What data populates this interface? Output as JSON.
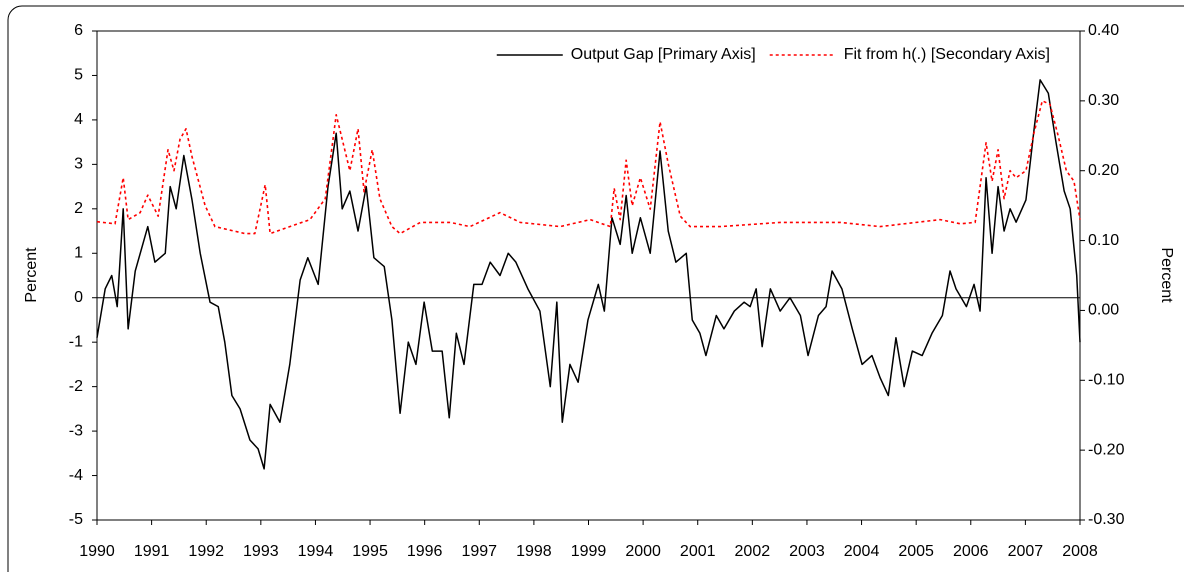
{
  "chart_data": {
    "type": "line",
    "y_label": "Percent",
    "y2_label": "Percent",
    "legend": "upper right",
    "xlim": [
      1990,
      2008
    ],
    "xticks": [
      1990,
      1991,
      1992,
      1993,
      1994,
      1995,
      1996,
      1997,
      1998,
      1999,
      2000,
      2001,
      2002,
      2003,
      2004,
      2005,
      2006,
      2007,
      2008
    ],
    "ylim": [
      -5,
      6
    ],
    "yticks": [
      -5,
      -4,
      -3,
      -2,
      -1,
      0,
      1,
      2,
      3,
      4,
      5,
      6
    ],
    "y2lim": [
      -0.3,
      0.4
    ],
    "y2ticks": [
      {
        "value": -0.3,
        "label": "-0.30"
      },
      {
        "value": -0.2,
        "label": "-0.20"
      },
      {
        "value": -0.1,
        "label": "-0.10"
      },
      {
        "value": 0,
        "label": "0.00"
      },
      {
        "value": 0.1,
        "label": "0.10"
      },
      {
        "value": 0.2,
        "label": "0.20"
      },
      {
        "value": 0.3,
        "label": "0.30"
      },
      {
        "value": 0.4,
        "label": "0.40"
      }
    ],
    "series": [
      {
        "name": "Output Gap [Primary Axis]",
        "color": "#000000",
        "style": "solid",
        "x": [
          1990.0,
          1990.15,
          1990.27,
          1990.37,
          1990.48,
          1990.57,
          1990.7,
          1990.93,
          1991.06,
          1991.25,
          1991.34,
          1991.45,
          1991.59,
          1991.74,
          1991.89,
          1992.07,
          1992.22,
          1992.34,
          1992.47,
          1992.62,
          1992.8,
          1992.95,
          1993.06,
          1993.17,
          1993.35,
          1993.53,
          1993.72,
          1993.86,
          1994.05,
          1994.23,
          1994.38,
          1994.49,
          1994.63,
          1994.78,
          1994.93,
          1995.07,
          1995.26,
          1995.4,
          1995.55,
          1995.7,
          1995.84,
          1995.99,
          1996.14,
          1996.32,
          1996.45,
          1996.58,
          1996.72,
          1996.9,
          1997.05,
          1997.2,
          1997.38,
          1997.53,
          1997.67,
          1997.89,
          1998.11,
          1998.3,
          1998.42,
          1998.52,
          1998.66,
          1998.81,
          1998.99,
          1999.18,
          1999.29,
          1999.43,
          1999.58,
          1999.69,
          1999.8,
          1999.95,
          2000.13,
          2000.31,
          2000.46,
          2000.6,
          2000.79,
          2000.9,
          2001.04,
          2001.15,
          2001.34,
          2001.48,
          2001.67,
          2001.85,
          2001.96,
          2002.07,
          2002.18,
          2002.33,
          2002.51,
          2002.69,
          2002.88,
          2003.02,
          2003.21,
          2003.35,
          2003.46,
          2003.64,
          2003.83,
          2004.01,
          2004.19,
          2004.34,
          2004.49,
          2004.63,
          2004.78,
          2004.93,
          2005.11,
          2005.29,
          2005.48,
          2005.62,
          2005.73,
          2005.92,
          2006.06,
          2006.17,
          2006.28,
          2006.39,
          2006.5,
          2006.61,
          2006.72,
          2006.83,
          2007.01,
          2007.16,
          2007.27,
          2007.42,
          2007.56,
          2007.71,
          2007.82,
          2007.94,
          2008.0
        ],
        "values": [
          -0.9,
          0.2,
          0.5,
          -0.2,
          2.0,
          -0.7,
          0.6,
          1.6,
          0.8,
          1.0,
          2.5,
          2.0,
          3.2,
          2.2,
          1.0,
          -0.1,
          -0.2,
          -1.0,
          -2.2,
          -2.5,
          -3.2,
          -3.4,
          -3.85,
          -2.4,
          -2.8,
          -1.5,
          0.4,
          0.9,
          0.3,
          2.5,
          3.7,
          2.0,
          2.4,
          1.5,
          2.5,
          0.9,
          0.7,
          -0.5,
          -2.6,
          -1.0,
          -1.5,
          -0.1,
          -1.2,
          -1.2,
          -2.7,
          -0.8,
          -1.5,
          0.3,
          0.3,
          0.8,
          0.5,
          1.0,
          0.8,
          0.2,
          -0.3,
          -2.0,
          -0.1,
          -2.8,
          -1.5,
          -1.9,
          -0.5,
          0.3,
          -0.3,
          1.8,
          1.2,
          2.3,
          1.0,
          1.8,
          1.0,
          3.3,
          1.5,
          0.8,
          1.0,
          -0.5,
          -0.8,
          -1.3,
          -0.4,
          -0.7,
          -0.3,
          -0.1,
          -0.2,
          0.2,
          -1.1,
          0.2,
          -0.3,
          0.0,
          -0.4,
          -1.3,
          -0.4,
          -0.2,
          0.6,
          0.2,
          -0.7,
          -1.5,
          -1.3,
          -1.8,
          -2.2,
          -0.9,
          -2.0,
          -1.2,
          -1.3,
          -0.8,
          -0.4,
          0.6,
          0.2,
          -0.2,
          0.3,
          -0.3,
          2.7,
          1.0,
          2.5,
          1.5,
          2.0,
          1.7,
          2.2,
          3.8,
          4.9,
          4.6,
          3.5,
          2.4,
          2.0,
          0.5,
          -1.0
        ]
      },
      {
        "name": "Fit from h(.) [Secondary Axis]",
        "color": "#ff0000",
        "style": "dotted",
        "axis": "y2",
        "x": [
          1990.0,
          1990.33,
          1990.48,
          1990.57,
          1990.79,
          1990.93,
          1991.12,
          1991.3,
          1991.41,
          1991.52,
          1991.63,
          1991.74,
          1991.98,
          1992.16,
          1992.71,
          1992.89,
          1993.08,
          1993.17,
          1993.53,
          1993.9,
          1994.18,
          1994.38,
          1994.49,
          1994.63,
          1994.78,
          1994.89,
          1995.04,
          1995.18,
          1995.4,
          1995.55,
          1995.92,
          1996.47,
          1996.83,
          1997.38,
          1997.75,
          1998.48,
          1999.03,
          1999.4,
          1999.47,
          1999.58,
          1999.69,
          1999.8,
          1999.95,
          2000.13,
          2000.31,
          2000.46,
          2000.68,
          2000.86,
          2001.41,
          2002.51,
          2003.61,
          2004.34,
          2005.44,
          2005.81,
          2006.08,
          2006.28,
          2006.39,
          2006.5,
          2006.61,
          2006.72,
          2006.83,
          2007.01,
          2007.16,
          2007.31,
          2007.45,
          2007.6,
          2007.75,
          2007.89,
          2008.0
        ],
        "values": [
          0.127,
          0.124,
          0.19,
          0.13,
          0.14,
          0.165,
          0.135,
          0.23,
          0.2,
          0.245,
          0.26,
          0.22,
          0.15,
          0.12,
          0.11,
          0.11,
          0.18,
          0.11,
          0.12,
          0.13,
          0.16,
          0.28,
          0.245,
          0.2,
          0.26,
          0.17,
          0.23,
          0.16,
          0.12,
          0.11,
          0.126,
          0.126,
          0.12,
          0.14,
          0.126,
          0.12,
          0.13,
          0.12,
          0.175,
          0.13,
          0.215,
          0.15,
          0.19,
          0.145,
          0.27,
          0.21,
          0.135,
          0.12,
          0.12,
          0.126,
          0.126,
          0.12,
          0.13,
          0.124,
          0.126,
          0.24,
          0.185,
          0.23,
          0.16,
          0.2,
          0.19,
          0.2,
          0.255,
          0.3,
          0.295,
          0.25,
          0.2,
          0.185,
          0.13
        ]
      }
    ]
  }
}
